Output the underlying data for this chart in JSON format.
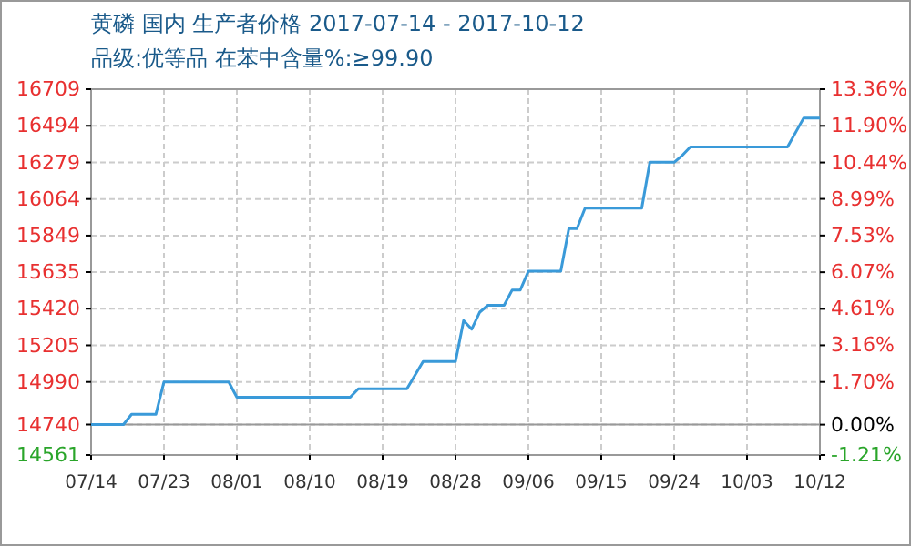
{
  "chart_data": {
    "type": "line",
    "title": "黄磷 国内 生产者价格 2017-07-14 - 2017-10-12",
    "subtitle": "品级:优等品 在苯中含量%:≥99.90",
    "x": [
      "2017-07-14",
      "2017-07-18",
      "2017-07-19",
      "2017-07-22",
      "2017-07-23",
      "2017-07-31",
      "2017-08-01",
      "2017-08-15",
      "2017-08-16",
      "2017-08-22",
      "2017-08-24",
      "2017-08-28",
      "2017-08-29",
      "2017-08-30",
      "2017-08-31",
      "2017-09-01",
      "2017-09-03",
      "2017-09-04",
      "2017-09-05",
      "2017-09-06",
      "2017-09-10",
      "2017-09-11",
      "2017-09-12",
      "2017-09-13",
      "2017-09-20",
      "2017-09-21",
      "2017-09-24",
      "2017-09-25",
      "2017-09-26",
      "2017-10-08",
      "2017-10-10",
      "2017-10-12"
    ],
    "series": [
      {
        "color": "#3a9ad9",
        "values": [
          14740,
          14740,
          14800,
          14800,
          14990,
          14990,
          14900,
          14900,
          14950,
          14950,
          15110,
          15110,
          15350,
          15300,
          15400,
          15440,
          15440,
          15530,
          15530,
          15640,
          15640,
          15890,
          15890,
          16010,
          16010,
          16280,
          16280,
          16320,
          16370,
          16370,
          16540,
          16540
        ]
      }
    ],
    "xlim": [
      "2017-07-14",
      "2017-10-12"
    ],
    "xticks": [
      {
        "value": "2017-07-14",
        "label": "07/14"
      },
      {
        "value": "2017-07-23",
        "label": "07/23"
      },
      {
        "value": "2017-08-01",
        "label": "08/01"
      },
      {
        "value": "2017-08-10",
        "label": "08/10"
      },
      {
        "value": "2017-08-19",
        "label": "08/19"
      },
      {
        "value": "2017-08-28",
        "label": "08/28"
      },
      {
        "value": "2017-09-06",
        "label": "09/06"
      },
      {
        "value": "2017-09-15",
        "label": "09/15"
      },
      {
        "value": "2017-09-24",
        "label": "09/24"
      },
      {
        "value": "2017-10-03",
        "label": "10/03"
      },
      {
        "value": "2017-10-12",
        "label": "10/12"
      }
    ],
    "ylim": [
      14561,
      16709
    ],
    "yticks": [
      14561,
      14740,
      14990,
      15205,
      15420,
      15635,
      15849,
      16064,
      16279,
      16494,
      16709
    ],
    "y2lim": [
      -1.21,
      13.36
    ],
    "y2ticks": [
      {
        "value": -1.21,
        "label": "-1.21%"
      },
      {
        "value": 0,
        "label": "0.00%"
      },
      {
        "value": 1.7,
        "label": "1.70%"
      },
      {
        "value": 3.16,
        "label": "3.16%"
      },
      {
        "value": 4.61,
        "label": "4.61%"
      },
      {
        "value": 6.07,
        "label": "6.07%"
      },
      {
        "value": 7.53,
        "label": "7.53%"
      },
      {
        "value": 8.99,
        "label": "8.99%"
      },
      {
        "value": 10.44,
        "label": "10.44%"
      },
      {
        "value": 11.9,
        "label": "11.90%"
      },
      {
        "value": 13.36,
        "label": "13.36%"
      }
    ],
    "grid": true,
    "line_style": "solid",
    "marker": "none"
  }
}
